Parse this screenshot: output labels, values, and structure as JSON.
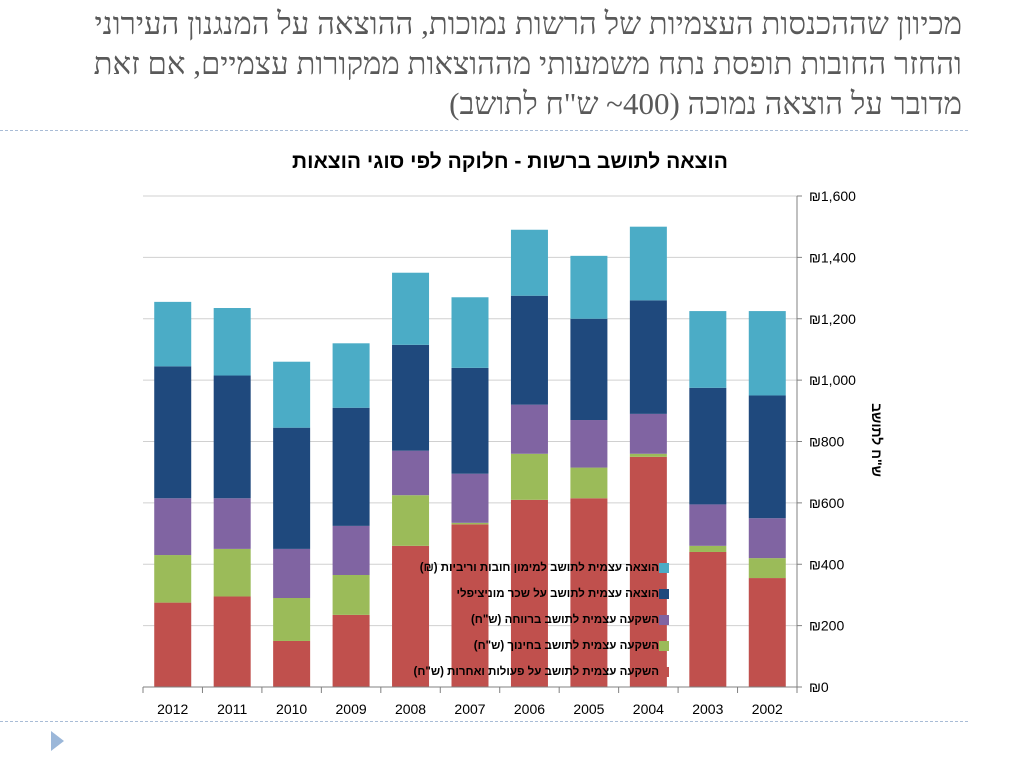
{
  "slide": {
    "title": "מכיוון שההכנסות העצמיות של הרשות נמוכות, ההוצאה על המנגנון העירוני והחזר החובות תופסת נתח משמעותי מההוצאות ממקורות עצמיים, אם זאת מדובר על הוצאה נמוכה (400~ ש\"ח לתושב)"
  },
  "chart_data": {
    "type": "bar",
    "stacked": true,
    "title": "הוצאה לתושב ברשות - חלוקה לפי סוגי הוצאות",
    "ylabel": "ש\"ח לתושב",
    "y_axis_position": "right",
    "ylim": [
      0,
      1600
    ],
    "ytick_labels": [
      "₪0",
      "₪200",
      "₪400",
      "₪600",
      "₪800",
      "₪1,000",
      "₪1,200",
      "₪1,400",
      "₪1,600"
    ],
    "yticks": [
      0,
      200,
      400,
      600,
      800,
      1000,
      1200,
      1400,
      1600
    ],
    "grid": true,
    "legend_position": "inside-bottom-center",
    "categories": [
      "2012",
      "2011",
      "2010",
      "2009",
      "2008",
      "2007",
      "2006",
      "2005",
      "2004",
      "2003",
      "2002"
    ],
    "series": [
      {
        "name": "השקעה עצמית לתושב על פעולות ואחרות (ש\"ח)",
        "color": "#c0504d",
        "values": [
          275,
          295,
          150,
          235,
          460,
          530,
          610,
          615,
          750,
          440,
          355
        ]
      },
      {
        "name": "השקעה עצמית לתושב בחינוך (ש\"ח)",
        "color": "#9bbb59",
        "values": [
          155,
          155,
          140,
          130,
          165,
          5,
          150,
          100,
          10,
          20,
          65
        ]
      },
      {
        "name": "השקעה עצמית לתושב ברווחה (ש\"ח)",
        "color": "#8064a2",
        "values": [
          185,
          165,
          160,
          160,
          145,
          160,
          160,
          155,
          130,
          135,
          130
        ]
      },
      {
        "name": "הוצאה עצמית לתושב על שכר מוניציפלי",
        "color": "#1f497d",
        "values": [
          430,
          400,
          395,
          385,
          345,
          345,
          355,
          330,
          370,
          380,
          400
        ]
      },
      {
        "name": "הוצאה עצמית לתושב למימון חובות וריביות (₪)",
        "color": "#4bacc6",
        "values": [
          210,
          220,
          215,
          210,
          235,
          230,
          215,
          205,
          240,
          250,
          275
        ]
      }
    ],
    "legend_order": [
      4,
      3,
      2,
      1,
      0
    ]
  }
}
